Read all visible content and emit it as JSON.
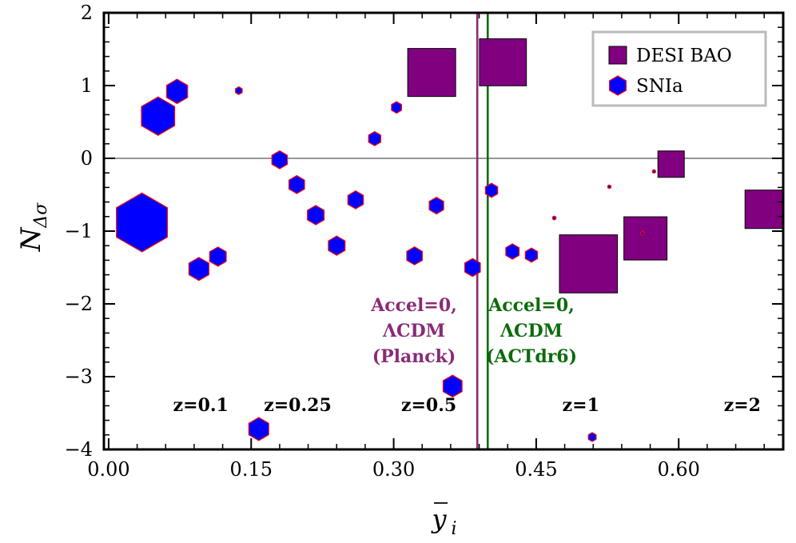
{
  "chart_data": {
    "type": "scatter",
    "xlabel_base": "y",
    "xlabel_sub": "i",
    "ylabel_base": "N",
    "ylabel_sub": "Δσ",
    "xlim": [
      -0.005,
      0.71
    ],
    "ylim": [
      -4,
      2
    ],
    "x_ticks": [
      {
        "value": 0.0,
        "label": "0.00"
      },
      {
        "value": 0.15,
        "label": "0.15"
      },
      {
        "value": 0.3,
        "label": "0.30"
      },
      {
        "value": 0.45,
        "label": "0.45"
      },
      {
        "value": 0.6,
        "label": "0.60"
      }
    ],
    "y_ticks": [
      {
        "value": -4,
        "label": "−4"
      },
      {
        "value": -3,
        "label": "−3"
      },
      {
        "value": -2,
        "label": "−2"
      },
      {
        "value": -1,
        "label": "−1"
      },
      {
        "value": 0,
        "label": "0"
      },
      {
        "value": 1,
        "label": "1"
      },
      {
        "value": 2,
        "label": "2"
      }
    ],
    "reference_line_y": 0,
    "colors": {
      "desi": "#800080",
      "sn_fill": "#0000ff",
      "sn_edge": "#ff0000",
      "planck": "#8a2b77",
      "act": "#0b6b0b",
      "zero_line": "#888888"
    },
    "legend": {
      "position": "top-right",
      "items": [
        {
          "label": "DESI BAO",
          "marker": "square"
        },
        {
          "label": "SNIa",
          "marker": "hexagon"
        }
      ]
    },
    "series": [
      {
        "name": "DESI BAO",
        "marker": "square",
        "points": [
          {
            "x": 0.34,
            "y": 1.18,
            "size": 1.0
          },
          {
            "x": 0.415,
            "y": 1.32,
            "size": 0.98
          },
          {
            "x": 0.505,
            "y": -1.45,
            "size": 1.21
          },
          {
            "x": 0.565,
            "y": -1.1,
            "size": 0.9
          },
          {
            "x": 0.592,
            "y": -0.08,
            "size": 0.55
          },
          {
            "x": 0.69,
            "y": -0.7,
            "size": 0.8
          }
        ]
      },
      {
        "name": "SNIa",
        "marker": "hexagon",
        "points": [
          {
            "x": 0.035,
            "y": -0.88,
            "size": 2.3
          },
          {
            "x": 0.052,
            "y": 0.58,
            "size": 1.5
          },
          {
            "x": 0.072,
            "y": 0.92,
            "size": 0.95
          },
          {
            "x": 0.095,
            "y": -1.52,
            "size": 0.9
          },
          {
            "x": 0.115,
            "y": -1.35,
            "size": 0.75
          },
          {
            "x": 0.137,
            "y": 0.93,
            "size": 0.3
          },
          {
            "x": 0.158,
            "y": -3.72,
            "size": 0.9
          },
          {
            "x": 0.18,
            "y": -0.02,
            "size": 0.7
          },
          {
            "x": 0.198,
            "y": -0.36,
            "size": 0.7
          },
          {
            "x": 0.218,
            "y": -0.78,
            "size": 0.75
          },
          {
            "x": 0.24,
            "y": -1.2,
            "size": 0.75
          },
          {
            "x": 0.26,
            "y": -0.57,
            "size": 0.7
          },
          {
            "x": 0.28,
            "y": 0.27,
            "size": 0.55
          },
          {
            "x": 0.303,
            "y": 0.7,
            "size": 0.45
          },
          {
            "x": 0.322,
            "y": -1.34,
            "size": 0.7
          },
          {
            "x": 0.345,
            "y": -0.65,
            "size": 0.65
          },
          {
            "x": 0.362,
            "y": -3.13,
            "size": 0.85
          },
          {
            "x": 0.383,
            "y": -1.5,
            "size": 0.7
          },
          {
            "x": 0.403,
            "y": -0.44,
            "size": 0.55
          },
          {
            "x": 0.425,
            "y": -1.28,
            "size": 0.6
          },
          {
            "x": 0.445,
            "y": -1.33,
            "size": 0.55
          },
          {
            "x": 0.469,
            "y": -0.82,
            "size": 0.15
          },
          {
            "x": 0.509,
            "y": -3.83,
            "size": 0.35
          },
          {
            "x": 0.527,
            "y": -0.39,
            "size": 0.12
          },
          {
            "x": 0.562,
            "y": -1.03,
            "size": 0.15
          },
          {
            "x": 0.574,
            "y": -0.18,
            "size": 0.1
          }
        ]
      }
    ],
    "vertical_lines": [
      {
        "name": "planck",
        "x": 0.388,
        "color_key": "planck",
        "label_lines": [
          "Accel=0,",
          "ΛCDM",
          "(Planck)"
        ]
      },
      {
        "name": "act",
        "x": 0.399,
        "color_key": "act",
        "label_lines": [
          "Accel=0,",
          "ΛCDM",
          "(ACTdr6)"
        ]
      }
    ],
    "redshift_labels": [
      {
        "text": "z=0.1",
        "x": 0.097,
        "y": -3.47
      },
      {
        "text": "z=0.25",
        "x": 0.199,
        "y": -3.47
      },
      {
        "text": "z=0.5",
        "x": 0.337,
        "y": -3.47
      },
      {
        "text": "z=1",
        "x": 0.497,
        "y": -3.47
      },
      {
        "text": "z=2",
        "x": 0.667,
        "y": -3.47
      }
    ]
  }
}
